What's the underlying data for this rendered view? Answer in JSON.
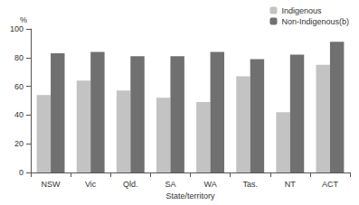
{
  "chart_data": {
    "type": "bar",
    "categories": [
      "NSW",
      "Vic",
      "Qld.",
      "SA",
      "WA",
      "Tas.",
      "NT",
      "ACT"
    ],
    "series": [
      {
        "name": "Indigenous",
        "color": "#c3c3c3",
        "values": [
          54,
          64,
          57,
          52,
          49,
          67,
          42,
          75
        ]
      },
      {
        "name": "Non-Indigenous(b)",
        "color": "#707070",
        "values": [
          83,
          84,
          81,
          81,
          84,
          79,
          82,
          91
        ]
      }
    ],
    "x_label": "State/territory",
    "y_label": "%",
    "ylim": [
      0,
      100
    ],
    "yticks": [
      0,
      20,
      40,
      60,
      80,
      100
    ],
    "grid": false,
    "legend": "top right"
  }
}
